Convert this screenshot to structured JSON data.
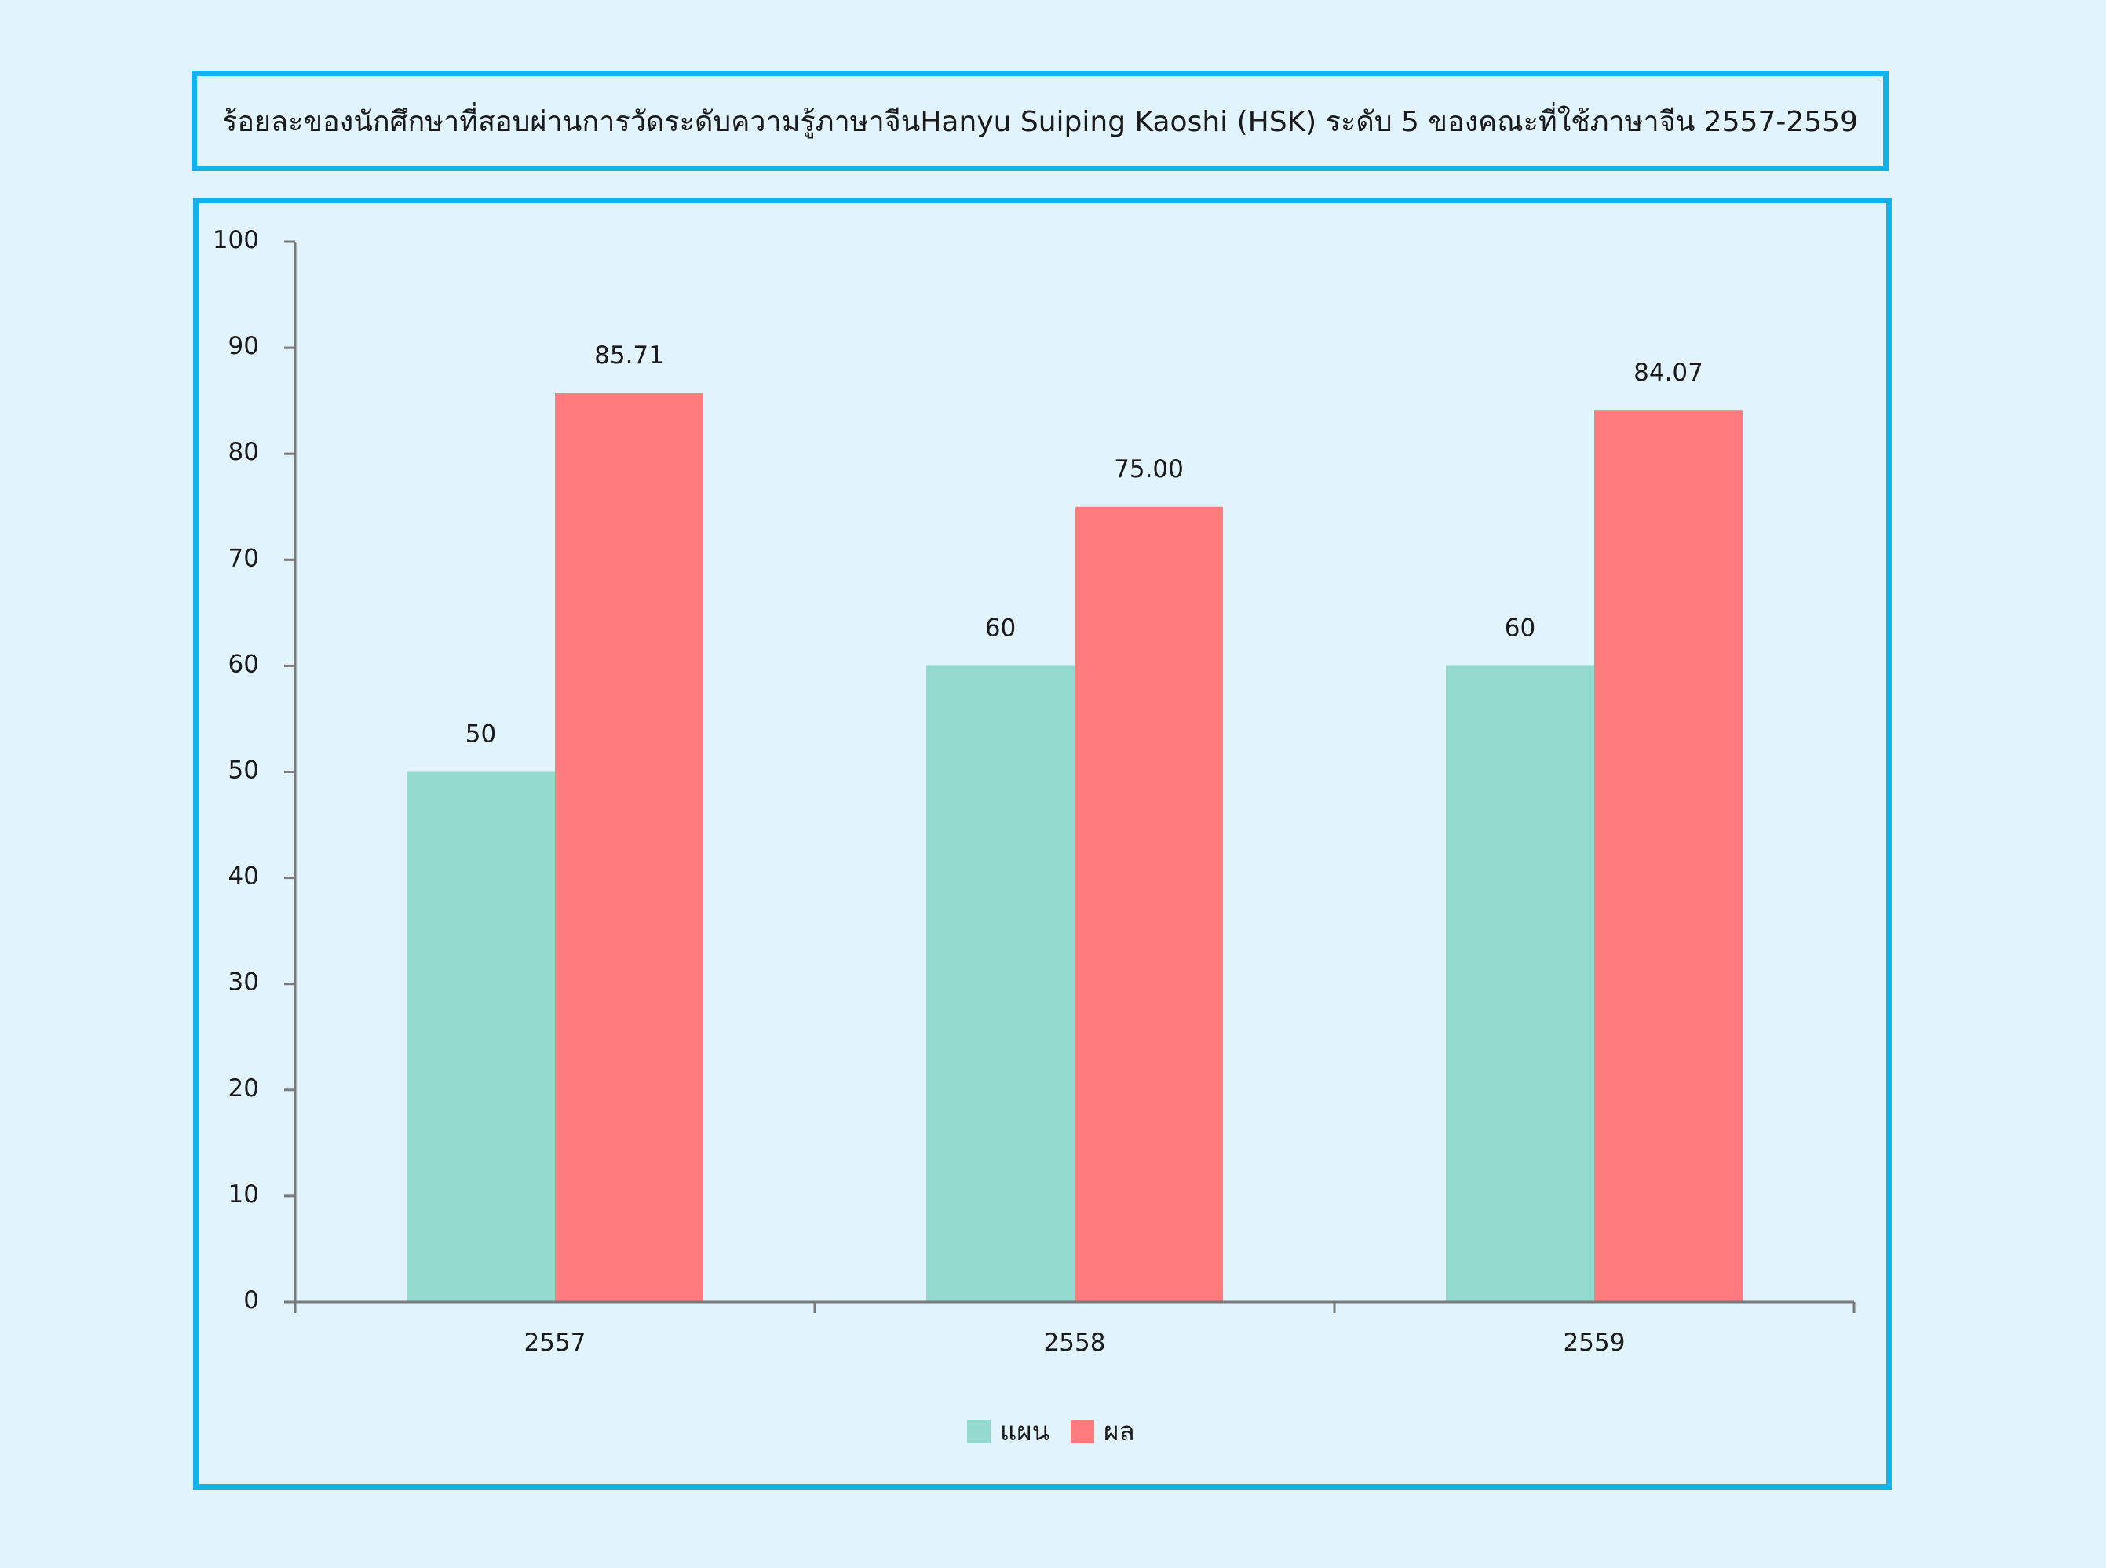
{
  "title": "ร้อยละของนักศึกษาที่สอบผ่านการวัดระดับความรู้ภาษาจีนHanyu Suiping Kaoshi (HSK) ระดับ 5 ของคณะที่ใช้ภาษาจีน  2557-2559",
  "colors": {
    "plan": "#93d9cd",
    "result": "#ff7b7f",
    "border": "#12b2ea",
    "axis": "#7a7a7a",
    "background": "#e1f3fc"
  },
  "chart_data": {
    "type": "bar",
    "categories": [
      "2557",
      "2558",
      "2559"
    ],
    "series": [
      {
        "name": "แผน",
        "values": [
          50,
          60,
          60
        ],
        "labels": [
          "50",
          "60",
          "60"
        ]
      },
      {
        "name": "ผล",
        "values": [
          85.71,
          75.0,
          84.07
        ],
        "labels": [
          "85.71",
          "75.00",
          "84.07"
        ]
      }
    ],
    "ylim": [
      0,
      100
    ],
    "yticks": [
      "0",
      "10",
      "20",
      "30",
      "40",
      "50",
      "60",
      "70",
      "80",
      "90",
      "100"
    ],
    "grid": false,
    "legend": "bottom-center"
  }
}
